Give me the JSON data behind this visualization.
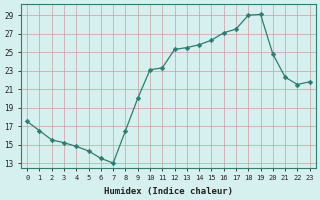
{
  "x": [
    0,
    1,
    2,
    3,
    4,
    5,
    6,
    7,
    8,
    9,
    10,
    11,
    12,
    13,
    14,
    15,
    16,
    17,
    18,
    19,
    20,
    21,
    22,
    23
  ],
  "y": [
    17.5,
    16.5,
    15.5,
    15.2,
    14.8,
    14.3,
    13.5,
    13.0,
    16.5,
    20.0,
    23.1,
    23.3,
    25.3,
    25.5,
    25.8,
    26.3,
    27.1,
    27.5,
    29.0,
    29.1,
    24.8,
    22.3,
    21.5,
    21.8
  ],
  "xlabel": "Humidex (Indice chaleur)",
  "yticks": [
    13,
    15,
    17,
    19,
    21,
    23,
    25,
    27,
    29
  ],
  "xlim": [
    -0.5,
    23.5
  ],
  "ylim": [
    12.5,
    30.2
  ],
  "line_color": "#2e7d6e",
  "marker_color": "#2e7d6e",
  "bg_color": "#d6efef",
  "grid_color": "#b0cece",
  "font_color": "#222222",
  "font_family": "monospace"
}
